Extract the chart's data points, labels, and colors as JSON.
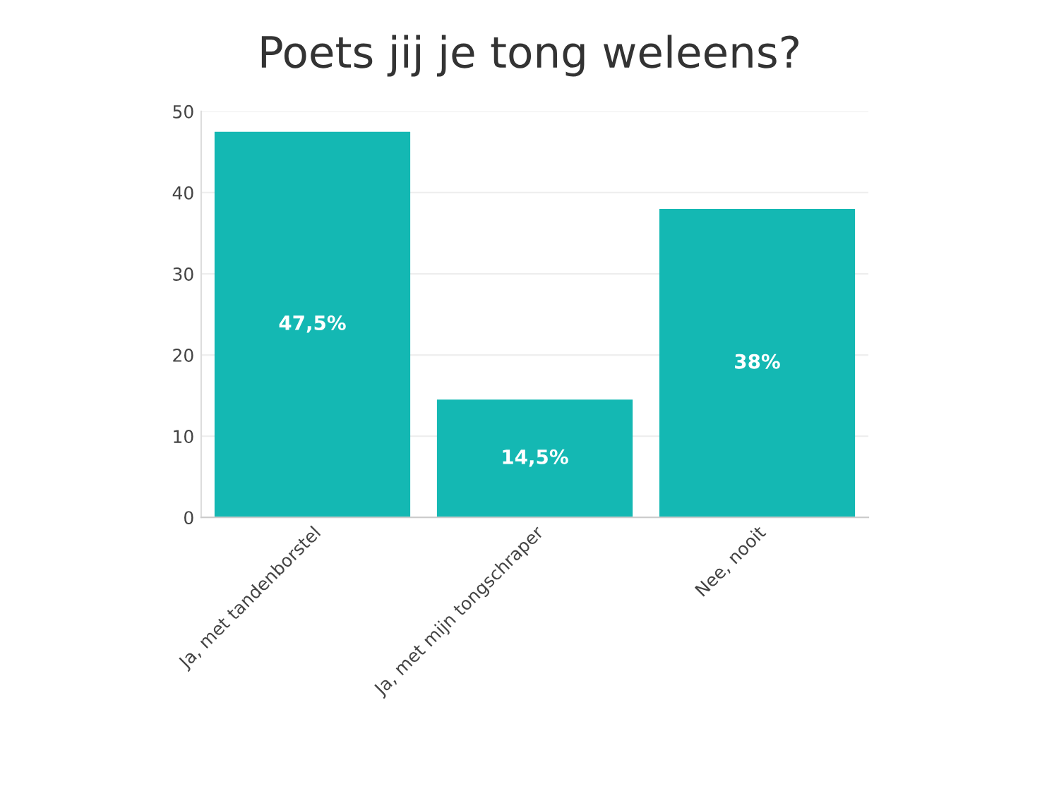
{
  "chart_data": {
    "type": "bar",
    "title": "Poets jij je tong weleens?",
    "categories": [
      "Ja, met tandenborstel",
      "Ja, met mijn tongschraper",
      "Nee, nooit"
    ],
    "values": [
      47.5,
      14.5,
      38
    ],
    "color": "#14b8b3",
    "value_labels": [
      "47,5%",
      "14,5%",
      "38%"
    ],
    "ylim": [
      0,
      50
    ],
    "yticks": [
      0,
      10,
      20,
      30,
      40,
      50
    ],
    "grid": "y"
  }
}
